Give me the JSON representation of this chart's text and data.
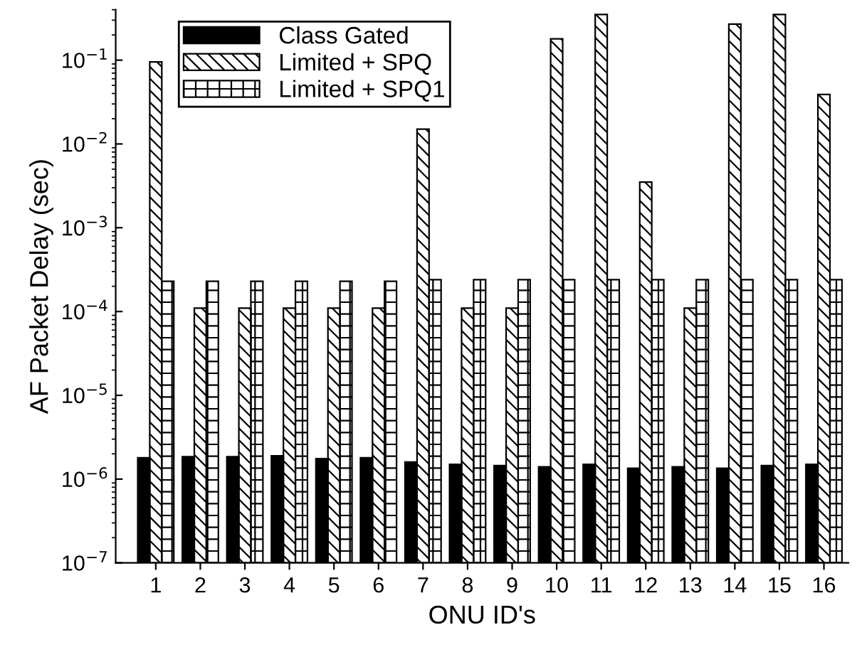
{
  "chart_data": {
    "type": "bar",
    "xlabel": "ONU ID's",
    "ylabel": "AF Packet Delay (sec)",
    "categories": [
      "1",
      "2",
      "3",
      "4",
      "5",
      "6",
      "7",
      "8",
      "9",
      "10",
      "11",
      "12",
      "13",
      "14",
      "15",
      "16"
    ],
    "series": [
      {
        "name": "Class Gated",
        "color": "#000000",
        "values": [
          1.8e-06,
          1.85e-06,
          1.85e-06,
          1.9e-06,
          1.75e-06,
          1.8e-06,
          1.6e-06,
          1.5e-06,
          1.45e-06,
          1.4e-06,
          1.5e-06,
          1.35e-06,
          1.4e-06,
          1.35e-06,
          1.45e-06,
          1.5e-06
        ]
      },
      {
        "name": "Limited + SPQ",
        "color": "#000000",
        "values": [
          0.095,
          0.00011,
          0.00011,
          0.00011,
          0.00011,
          0.00011,
          0.015,
          0.00011,
          0.00011,
          0.18,
          0.35,
          0.0035,
          0.00011,
          0.27,
          0.35,
          0.039
        ]
      },
      {
        "name": "Limited + SPQ1",
        "color": "#000000",
        "values": [
          0.00023,
          0.00023,
          0.00023,
          0.00023,
          0.00023,
          0.00023,
          0.00024,
          0.00024,
          0.00024,
          0.00024,
          0.00024,
          0.00024,
          0.00024,
          0.00024,
          0.00024,
          0.00024
        ]
      }
    ],
    "log": true,
    "ylim": [
      1e-07,
      0.4
    ],
    "yticks": [
      {
        "value": 1e-07,
        "label": "10$^{−7}$"
      },
      {
        "value": 1e-06,
        "label": "10$^{−6}$"
      },
      {
        "value": 1e-05,
        "label": "10$^{−5}$"
      },
      {
        "value": 0.0001,
        "label": "10$^{−4}$"
      },
      {
        "value": 0.001,
        "label": "10$^{−3}$"
      },
      {
        "value": 0.01,
        "label": "10$^{−2}$"
      },
      {
        "value": 0.1,
        "label": "10$^{−1}$"
      }
    ],
    "legend": "top left",
    "grid": false
  }
}
